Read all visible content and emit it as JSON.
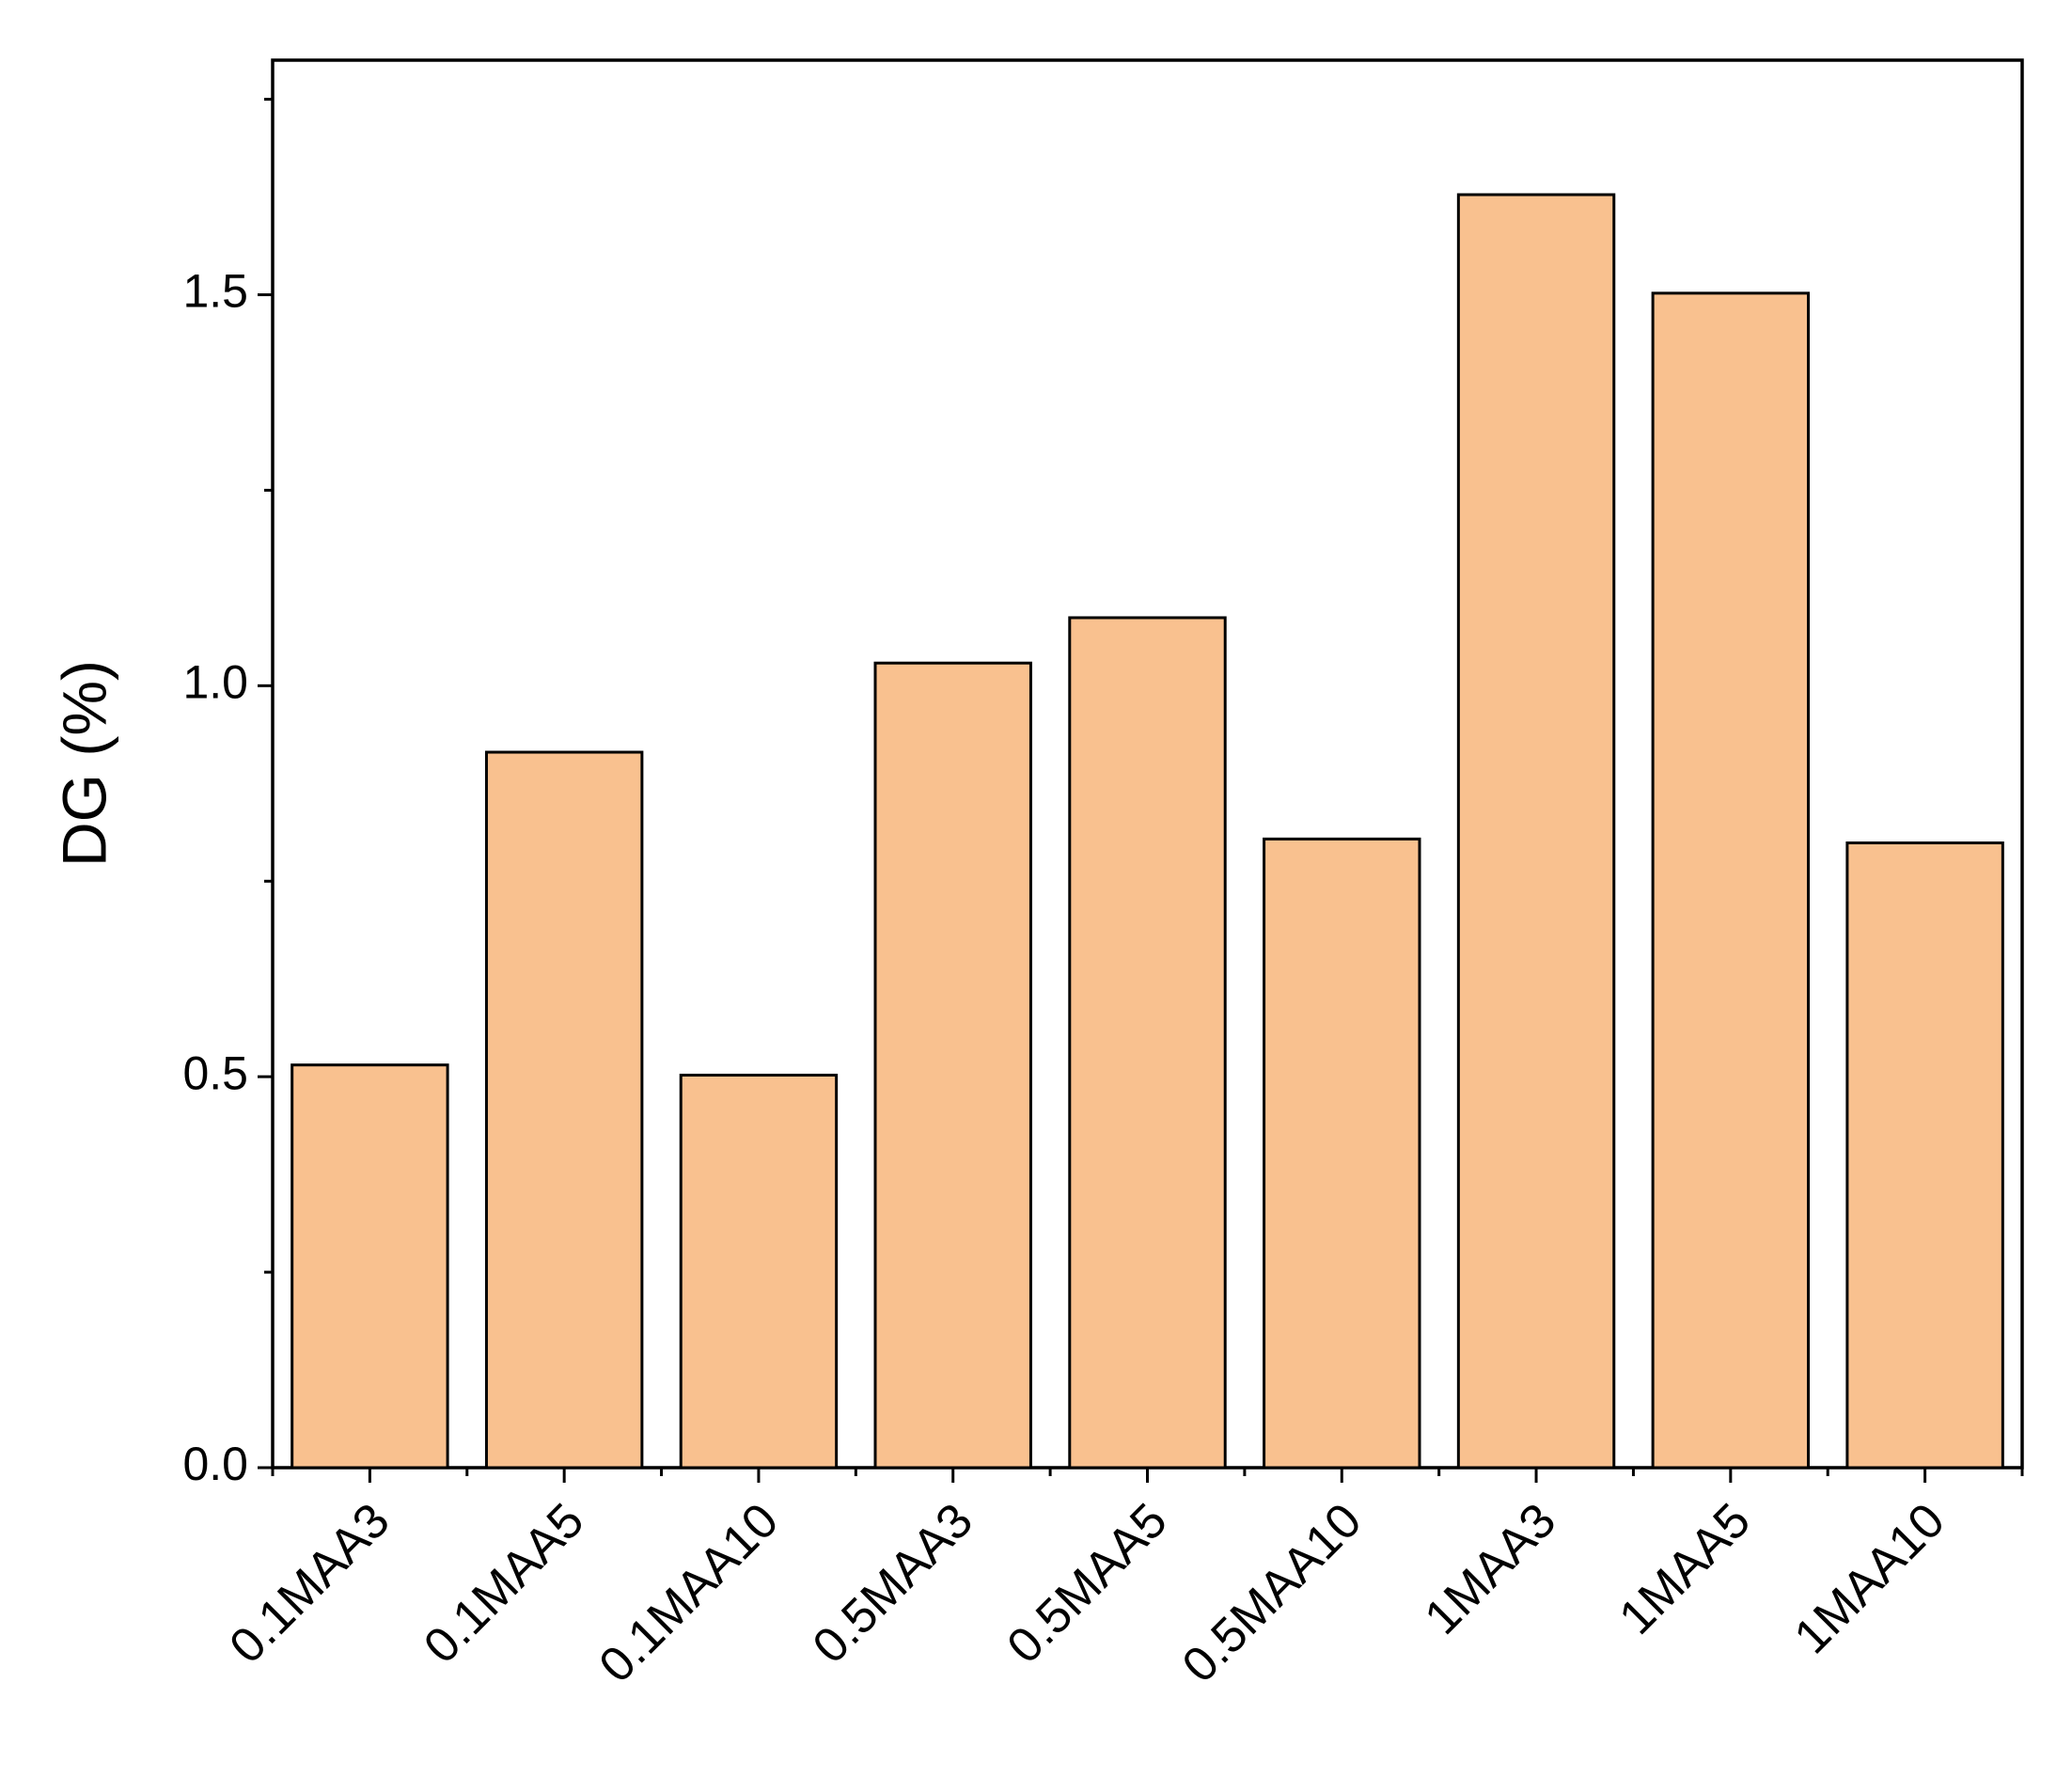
{
  "chart_data": {
    "type": "bar",
    "y_label": "DG (%)",
    "categories": [
      "0.1MAA3",
      "0.1MAA5",
      "0.1MAA10",
      "0.5MAA3",
      "0.5MAA5",
      "0.5MAA10",
      "1MAA3",
      "1MAA5",
      "1MAA10"
    ],
    "values": [
      0.515,
      0.915,
      0.502,
      1.029,
      1.087,
      0.804,
      1.628,
      1.502,
      0.799
    ],
    "color": "#f9c18f",
    "ylim": [
      0,
      1.8
    ],
    "yticks": [
      {
        "value": 0,
        "label": "0.0"
      },
      0.5,
      {
        "value": 1,
        "label": "1.0"
      },
      1.5
    ],
    "y_minor_ticks": [
      0.25,
      0.75,
      1.25,
      1.75
    ],
    "grid": false
  }
}
